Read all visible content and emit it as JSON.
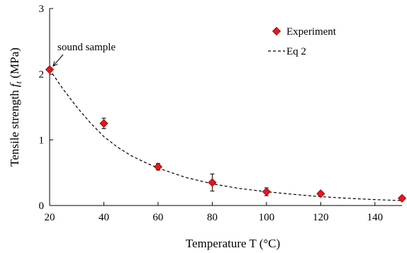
{
  "chart_data": {
    "type": "scatter",
    "xlabel": "Temperature T (°C)",
    "ylabel": {
      "prefix": "Tensile strength ",
      "symbol": "f",
      "subscript": "t",
      "suffix": " (MPa)"
    },
    "xlim": [
      20,
      150
    ],
    "ylim": [
      0,
      3
    ],
    "xticks": [
      20,
      40,
      60,
      80,
      100,
      120,
      140
    ],
    "yticks": [
      0,
      1,
      2,
      3
    ],
    "grid": false,
    "legend_position": "top-right",
    "series": [
      {
        "name": "Experiment",
        "kind": "marker",
        "marker": "diamond",
        "color": "#e8161d",
        "points": [
          {
            "x": 20,
            "y": 2.07,
            "err": 0.0
          },
          {
            "x": 40,
            "y": 1.25,
            "err": 0.08
          },
          {
            "x": 60,
            "y": 0.59,
            "err": 0.05
          },
          {
            "x": 80,
            "y": 0.35,
            "err": 0.13
          },
          {
            "x": 100,
            "y": 0.21,
            "err": 0.06
          },
          {
            "x": 120,
            "y": 0.18,
            "err": 0.0
          },
          {
            "x": 150,
            "y": 0.11,
            "err": 0.0
          }
        ]
      },
      {
        "name": "Eq 2",
        "kind": "line",
        "dash": "dashed",
        "color": "#000000",
        "points": [
          {
            "x": 20,
            "y": 2.07
          },
          {
            "x": 25,
            "y": 1.77
          },
          {
            "x": 30,
            "y": 1.5
          },
          {
            "x": 35,
            "y": 1.26
          },
          {
            "x": 40,
            "y": 1.05
          },
          {
            "x": 45,
            "y": 0.89
          },
          {
            "x": 50,
            "y": 0.76
          },
          {
            "x": 55,
            "y": 0.66
          },
          {
            "x": 60,
            "y": 0.57
          },
          {
            "x": 70,
            "y": 0.43
          },
          {
            "x": 80,
            "y": 0.33
          },
          {
            "x": 90,
            "y": 0.26
          },
          {
            "x": 100,
            "y": 0.21
          },
          {
            "x": 110,
            "y": 0.17
          },
          {
            "x": 120,
            "y": 0.135
          },
          {
            "x": 130,
            "y": 0.11
          },
          {
            "x": 140,
            "y": 0.09
          },
          {
            "x": 150,
            "y": 0.075
          }
        ]
      }
    ],
    "annotations": [
      {
        "text": "sound sample",
        "target": {
          "x": 20,
          "y": 2.07
        }
      }
    ]
  }
}
